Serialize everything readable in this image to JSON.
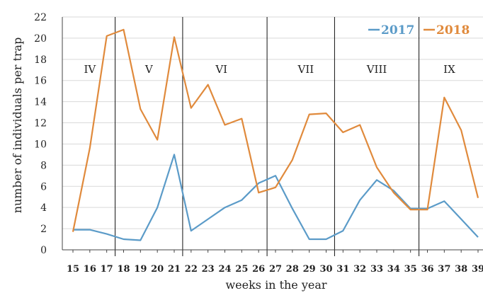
{
  "chart_data": {
    "type": "line",
    "xlabel": "weeks in the year",
    "ylabel": "number of individuals per trap",
    "ylim": [
      0,
      22
    ],
    "yticks": [
      0,
      2,
      4,
      6,
      8,
      10,
      12,
      14,
      16,
      18,
      20,
      22
    ],
    "x": [
      15,
      16,
      17,
      18,
      19,
      20,
      21,
      22,
      23,
      24,
      25,
      26,
      27,
      28,
      29,
      30,
      31,
      32,
      33,
      34,
      35,
      36,
      37,
      38,
      39
    ],
    "series": [
      {
        "name": "2017",
        "color": "#5b9bc8",
        "values": [
          1.9,
          1.9,
          1.5,
          1.0,
          0.9,
          4.0,
          9.0,
          1.8,
          2.9,
          4.0,
          4.7,
          6.3,
          7.0,
          3.9,
          1.0,
          1.0,
          1.8,
          4.7,
          6.6,
          5.6,
          3.9,
          3.9,
          4.6,
          2.9,
          1.2
        ]
      },
      {
        "name": "2018",
        "color": "#e08a3c",
        "values": [
          1.7,
          9.6,
          20.2,
          20.8,
          13.3,
          10.4,
          20.1,
          13.4,
          15.6,
          11.8,
          12.4,
          5.4,
          5.9,
          8.5,
          12.8,
          12.9,
          11.1,
          11.8,
          7.8,
          5.4,
          3.8,
          3.8,
          14.4,
          11.3,
          4.9
        ]
      }
    ],
    "months": [
      {
        "label": "IV",
        "x": 16
      },
      {
        "label": "V",
        "x": 19.5
      },
      {
        "label": "VI",
        "x": 23.8
      },
      {
        "label": "VII",
        "x": 28.8
      },
      {
        "label": "VIII",
        "x": 33
      },
      {
        "label": "IX",
        "x": 37.3
      }
    ],
    "month_dividers": [
      17.5,
      21.5,
      26.5,
      30.5,
      35.5
    ],
    "legend_position": "top-right",
    "grid": "horizontal"
  }
}
